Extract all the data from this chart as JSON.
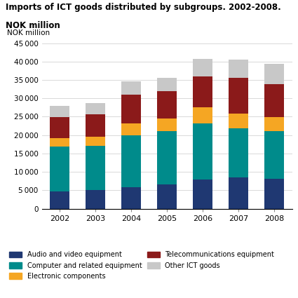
{
  "years": [
    2002,
    2003,
    2004,
    2005,
    2006,
    2007,
    2008
  ],
  "audio_video": [
    4600,
    5000,
    5800,
    6500,
    7900,
    8500,
    8100
  ],
  "computer": [
    12300,
    12000,
    14200,
    14500,
    15200,
    13400,
    13000
  ],
  "electronic": [
    2300,
    2500,
    3200,
    3500,
    4500,
    4000,
    3800
  ],
  "telecom": [
    5700,
    6200,
    7800,
    7500,
    8400,
    9700,
    9000
  ],
  "other_ict": [
    3000,
    3000,
    3600,
    3500,
    4800,
    5000,
    5500
  ],
  "colors": {
    "audio_video": "#1f3872",
    "computer": "#008b8b",
    "electronic": "#f5a623",
    "telecom": "#8b1a1a",
    "other_ict": "#c8c8c8"
  },
  "title_line1": "Imports of ICT goods distributed by subgroups. 2002-2008.",
  "title_line2": "NOK million",
  "ylabel": "NOK million",
  "ylim": [
    0,
    45000
  ],
  "yticks": [
    0,
    5000,
    10000,
    15000,
    20000,
    25000,
    30000,
    35000,
    40000,
    45000
  ],
  "legend_labels": [
    "Audio and video equipment",
    "Computer and related equipment",
    "Electronic components",
    "Telecommunications equipment",
    "Other ICT goods"
  ]
}
